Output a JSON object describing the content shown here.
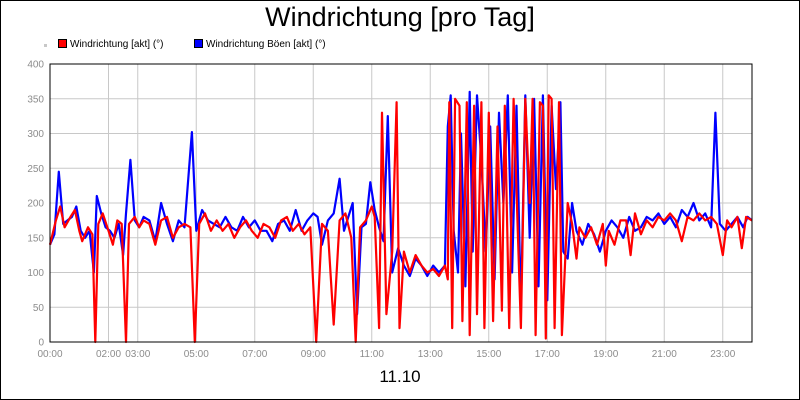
{
  "chart_data": {
    "type": "line",
    "title": "Windrichtung [pro Tag]",
    "xlabel": "11.10",
    "ylabel": "",
    "ylim": [
      0,
      400
    ],
    "yticks": [
      "0",
      "50",
      "100",
      "150",
      "200",
      "250",
      "300",
      "350",
      "400"
    ],
    "xticks": [
      "00:00",
      "02:00",
      "03:00",
      "05:00",
      "07:00",
      "09:00",
      "11:00",
      "13:00",
      "15:00",
      "17:00",
      "19:00",
      "21:00",
      "23:00"
    ],
    "xtick_hours": [
      0,
      2,
      3,
      5,
      7,
      9,
      11,
      13,
      15,
      17,
      19,
      21,
      23
    ],
    "grid": true,
    "legend_position": "top-left",
    "series": [
      {
        "name": "Windrichtung [akt] (°)",
        "color": "#ff0000",
        "points": [
          [
            0.0,
            140
          ],
          [
            0.2,
            175
          ],
          [
            0.35,
            195
          ],
          [
            0.5,
            165
          ],
          [
            0.7,
            180
          ],
          [
            0.85,
            190
          ],
          [
            1.0,
            160
          ],
          [
            1.1,
            145
          ],
          [
            1.3,
            165
          ],
          [
            1.45,
            155
          ],
          [
            1.55,
            0
          ],
          [
            1.65,
            170
          ],
          [
            1.8,
            185
          ],
          [
            2.0,
            160
          ],
          [
            2.15,
            140
          ],
          [
            2.3,
            175
          ],
          [
            2.45,
            170
          ],
          [
            2.6,
            0
          ],
          [
            2.7,
            170
          ],
          [
            2.9,
            180
          ],
          [
            3.05,
            165
          ],
          [
            3.2,
            175
          ],
          [
            3.4,
            170
          ],
          [
            3.6,
            140
          ],
          [
            3.8,
            175
          ],
          [
            4.0,
            180
          ],
          [
            4.2,
            150
          ],
          [
            4.4,
            165
          ],
          [
            4.6,
            170
          ],
          [
            4.8,
            165
          ],
          [
            4.95,
            0
          ],
          [
            5.1,
            170
          ],
          [
            5.3,
            185
          ],
          [
            5.5,
            160
          ],
          [
            5.7,
            175
          ],
          [
            5.9,
            160
          ],
          [
            6.1,
            170
          ],
          [
            6.3,
            150
          ],
          [
            6.5,
            165
          ],
          [
            6.7,
            175
          ],
          [
            6.9,
            160
          ],
          [
            7.1,
            150
          ],
          [
            7.3,
            170
          ],
          [
            7.5,
            165
          ],
          [
            7.7,
            150
          ],
          [
            7.9,
            175
          ],
          [
            8.1,
            180
          ],
          [
            8.3,
            160
          ],
          [
            8.5,
            170
          ],
          [
            8.7,
            155
          ],
          [
            8.9,
            165
          ],
          [
            9.1,
            0
          ],
          [
            9.3,
            170
          ],
          [
            9.5,
            160
          ],
          [
            9.7,
            25
          ],
          [
            9.9,
            175
          ],
          [
            10.1,
            185
          ],
          [
            10.3,
            150
          ],
          [
            10.45,
            0
          ],
          [
            10.6,
            165
          ],
          [
            10.8,
            175
          ],
          [
            11.0,
            195
          ],
          [
            11.1,
            180
          ],
          [
            11.25,
            20
          ],
          [
            11.35,
            330
          ],
          [
            11.5,
            40
          ],
          [
            11.7,
            130
          ],
          [
            11.85,
            345
          ],
          [
            11.95,
            20
          ],
          [
            12.1,
            130
          ],
          [
            12.3,
            100
          ],
          [
            12.5,
            125
          ],
          [
            12.7,
            110
          ],
          [
            12.9,
            100
          ],
          [
            13.1,
            105
          ],
          [
            13.3,
            95
          ],
          [
            13.5,
            110
          ],
          [
            13.6,
            90
          ],
          [
            13.65,
            345
          ],
          [
            13.75,
            20
          ],
          [
            13.85,
            350
          ],
          [
            14.0,
            340
          ],
          [
            14.1,
            30
          ],
          [
            14.25,
            345
          ],
          [
            14.35,
            10
          ],
          [
            14.5,
            340
          ],
          [
            14.6,
            40
          ],
          [
            14.75,
            345
          ],
          [
            14.85,
            20
          ],
          [
            15.0,
            330
          ],
          [
            15.15,
            30
          ],
          [
            15.3,
            310
          ],
          [
            15.45,
            45
          ],
          [
            15.55,
            340
          ],
          [
            15.7,
            20
          ],
          [
            15.85,
            350
          ],
          [
            16.0,
            150
          ],
          [
            16.1,
            20
          ],
          [
            16.25,
            350
          ],
          [
            16.4,
            200
          ],
          [
            16.5,
            350
          ],
          [
            16.6,
            10
          ],
          [
            16.75,
            345
          ],
          [
            16.85,
            340
          ],
          [
            16.95,
            5
          ],
          [
            17.05,
            355
          ],
          [
            17.15,
            350
          ],
          [
            17.25,
            20
          ],
          [
            17.4,
            345
          ],
          [
            17.5,
            10
          ],
          [
            17.7,
            200
          ],
          [
            17.85,
            170
          ],
          [
            18.0,
            120
          ],
          [
            18.1,
            165
          ],
          [
            18.3,
            150
          ],
          [
            18.5,
            165
          ],
          [
            18.7,
            140
          ],
          [
            18.9,
            170
          ],
          [
            19.0,
            110
          ],
          [
            19.1,
            160
          ],
          [
            19.3,
            140
          ],
          [
            19.5,
            175
          ],
          [
            19.7,
            175
          ],
          [
            19.85,
            125
          ],
          [
            20.0,
            185
          ],
          [
            20.2,
            155
          ],
          [
            20.4,
            175
          ],
          [
            20.6,
            165
          ],
          [
            20.8,
            180
          ],
          [
            21.0,
            175
          ],
          [
            21.2,
            185
          ],
          [
            21.4,
            175
          ],
          [
            21.6,
            145
          ],
          [
            21.8,
            180
          ],
          [
            22.0,
            175
          ],
          [
            22.2,
            185
          ],
          [
            22.4,
            175
          ],
          [
            22.6,
            180
          ],
          [
            22.8,
            170
          ],
          [
            23.0,
            125
          ],
          [
            23.15,
            175
          ],
          [
            23.3,
            165
          ],
          [
            23.5,
            180
          ],
          [
            23.65,
            135
          ],
          [
            23.8,
            180
          ],
          [
            24.0,
            175
          ]
        ]
      },
      {
        "name": "Windrichtung Böen [akt] (°)",
        "color": "#0000ff",
        "points": [
          [
            0.0,
            140
          ],
          [
            0.15,
            155
          ],
          [
            0.3,
            245
          ],
          [
            0.45,
            170
          ],
          [
            0.6,
            175
          ],
          [
            0.75,
            180
          ],
          [
            0.9,
            195
          ],
          [
            1.05,
            160
          ],
          [
            1.2,
            150
          ],
          [
            1.35,
            160
          ],
          [
            1.5,
            100
          ],
          [
            1.6,
            210
          ],
          [
            1.75,
            185
          ],
          [
            1.9,
            165
          ],
          [
            2.05,
            160
          ],
          [
            2.2,
            150
          ],
          [
            2.35,
            170
          ],
          [
            2.5,
            125
          ],
          [
            2.6,
            185
          ],
          [
            2.75,
            262
          ],
          [
            2.9,
            175
          ],
          [
            3.05,
            165
          ],
          [
            3.2,
            180
          ],
          [
            3.4,
            175
          ],
          [
            3.6,
            145
          ],
          [
            3.8,
            200
          ],
          [
            4.0,
            170
          ],
          [
            4.2,
            145
          ],
          [
            4.4,
            175
          ],
          [
            4.6,
            165
          ],
          [
            4.85,
            302
          ],
          [
            5.0,
            160
          ],
          [
            5.2,
            190
          ],
          [
            5.4,
            175
          ],
          [
            5.6,
            170
          ],
          [
            5.8,
            165
          ],
          [
            6.0,
            180
          ],
          [
            6.2,
            165
          ],
          [
            6.4,
            160
          ],
          [
            6.6,
            180
          ],
          [
            6.8,
            165
          ],
          [
            7.0,
            175
          ],
          [
            7.2,
            160
          ],
          [
            7.4,
            160
          ],
          [
            7.6,
            145
          ],
          [
            7.8,
            170
          ],
          [
            8.0,
            175
          ],
          [
            8.2,
            160
          ],
          [
            8.4,
            190
          ],
          [
            8.6,
            160
          ],
          [
            8.8,
            175
          ],
          [
            9.0,
            185
          ],
          [
            9.15,
            180
          ],
          [
            9.3,
            140
          ],
          [
            9.5,
            175
          ],
          [
            9.7,
            185
          ],
          [
            9.9,
            235
          ],
          [
            10.05,
            160
          ],
          [
            10.2,
            180
          ],
          [
            10.35,
            200
          ],
          [
            10.5,
            40
          ],
          [
            10.65,
            165
          ],
          [
            10.8,
            170
          ],
          [
            10.95,
            230
          ],
          [
            11.1,
            190
          ],
          [
            11.25,
            165
          ],
          [
            11.4,
            145
          ],
          [
            11.55,
            325
          ],
          [
            11.7,
            100
          ],
          [
            11.9,
            135
          ],
          [
            12.1,
            110
          ],
          [
            12.3,
            95
          ],
          [
            12.5,
            120
          ],
          [
            12.7,
            110
          ],
          [
            12.9,
            95
          ],
          [
            13.1,
            110
          ],
          [
            13.3,
            100
          ],
          [
            13.5,
            110
          ],
          [
            13.6,
            310
          ],
          [
            13.7,
            355
          ],
          [
            13.8,
            160
          ],
          [
            13.95,
            100
          ],
          [
            14.05,
            300
          ],
          [
            14.2,
            80
          ],
          [
            14.35,
            360
          ],
          [
            14.45,
            130
          ],
          [
            14.6,
            355
          ],
          [
            14.75,
            260
          ],
          [
            14.9,
            130
          ],
          [
            15.05,
            310
          ],
          [
            15.2,
            90
          ],
          [
            15.35,
            330
          ],
          [
            15.5,
            200
          ],
          [
            15.65,
            355
          ],
          [
            15.8,
            100
          ],
          [
            15.95,
            340
          ],
          [
            16.1,
            45
          ],
          [
            16.25,
            355
          ],
          [
            16.4,
            150
          ],
          [
            16.55,
            350
          ],
          [
            16.7,
            80
          ],
          [
            16.85,
            355
          ],
          [
            17.0,
            60
          ],
          [
            17.15,
            340
          ],
          [
            17.3,
            220
          ],
          [
            17.45,
            345
          ],
          [
            17.55,
            130
          ],
          [
            17.7,
            120
          ],
          [
            17.85,
            200
          ],
          [
            18.0,
            160
          ],
          [
            18.2,
            140
          ],
          [
            18.4,
            170
          ],
          [
            18.6,
            155
          ],
          [
            18.8,
            130
          ],
          [
            19.0,
            160
          ],
          [
            19.2,
            175
          ],
          [
            19.4,
            165
          ],
          [
            19.6,
            150
          ],
          [
            19.8,
            180
          ],
          [
            20.0,
            160
          ],
          [
            20.2,
            165
          ],
          [
            20.4,
            180
          ],
          [
            20.6,
            175
          ],
          [
            20.8,
            185
          ],
          [
            21.0,
            170
          ],
          [
            21.2,
            180
          ],
          [
            21.4,
            165
          ],
          [
            21.6,
            190
          ],
          [
            21.8,
            180
          ],
          [
            22.0,
            200
          ],
          [
            22.2,
            175
          ],
          [
            22.4,
            185
          ],
          [
            22.6,
            165
          ],
          [
            22.75,
            330
          ],
          [
            22.9,
            170
          ],
          [
            23.1,
            160
          ],
          [
            23.3,
            170
          ],
          [
            23.5,
            180
          ],
          [
            23.7,
            165
          ],
          [
            23.85,
            180
          ],
          [
            24.0,
            175
          ]
        ]
      }
    ]
  }
}
